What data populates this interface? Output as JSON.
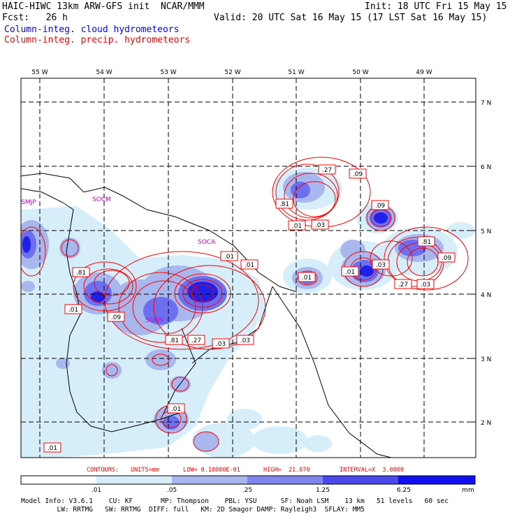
{
  "header": {
    "model": "HAIC-HIWC 13km ARW-GFS init  NCAR/MMM",
    "init": "Init: 18 UTC Fri 15 May 15",
    "forecast": "Fcst:   26 h",
    "valid": "Valid: 20 UTC Sat 16 May 15 (17 LST Sat 16 May 15)",
    "field_cloud": "Column-integ. cloud hydrometeors",
    "field_precip": "Column-integ. precip. hydrometeors"
  },
  "map": {
    "lon_labels": [
      "55 W",
      "54 W",
      "53 W",
      "52 W",
      "51 W",
      "50 W",
      "49 W"
    ],
    "lat_labels": [
      "7 N",
      "6 N",
      "5 N",
      "4 N",
      "3 N",
      "2 N"
    ],
    "stations": [
      "SMJP",
      "SOCM",
      "SOCA",
      "SOOS"
    ],
    "contour_labels": [
      ".27",
      ".09",
      ".81",
      ".01",
      ".03",
      ".09",
      ".01",
      ".03",
      ".81",
      ".01",
      ".09",
      ".01",
      ".03",
      ".27",
      ".03",
      ".81",
      ".01",
      ".09",
      ".81",
      ".27",
      ".03",
      ".01",
      ".01",
      ".01"
    ]
  },
  "contour_info": {
    "label": "CONTOURS:",
    "units": "UNITS=mm",
    "low": "LOW= 0.10000E-01",
    "high": "HIGH=  21.870",
    "interval": "INTERVAL=X  3.0000"
  },
  "colorbar": {
    "ticks": [
      ".01",
      ".05",
      ".25",
      "1.25",
      "6.25"
    ],
    "unit": "mm",
    "colors": [
      "#ffffff",
      "#d6eefa",
      "#a8b8ee",
      "#7f86ec",
      "#5050ea",
      "#2b2be8",
      "#1010f0"
    ]
  },
  "footer": {
    "line1": "Model Info: V3.6.1    CU: KF       MP: Thompson    PBL: YSU      SF: Noah LSM    13 km   51 levels   60 sec",
    "line2": "         LW: RRTMG   SW: RRTMG  DIFF: full   KM: 2D Smagor DAMP: Rayleigh3  SFLAY: MM5"
  }
}
